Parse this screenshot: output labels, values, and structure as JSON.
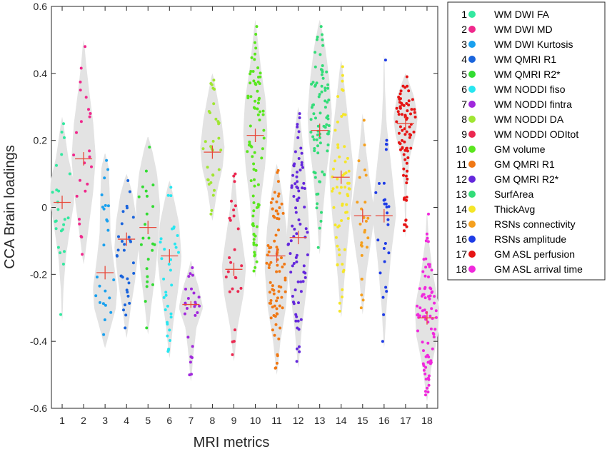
{
  "chart_data": {
    "type": "scatter",
    "subtype": "violin-jitter",
    "xlabel": "MRI metrics",
    "ylabel": "CCA Brain loadings",
    "ylim": [
      -0.6,
      0.6
    ],
    "yticks": [
      -0.6,
      -0.4,
      -0.2,
      0,
      0.2,
      0.4,
      0.6
    ],
    "yticklabels": [
      "-0.6",
      "-0.4",
      "-0.2",
      "0",
      "0.2",
      "0.4",
      "0.6"
    ],
    "xticks": [
      1,
      2,
      3,
      4,
      5,
      6,
      7,
      8,
      9,
      10,
      11,
      12,
      13,
      14,
      15,
      16,
      17,
      18
    ],
    "xticklabels": [
      "1",
      "2",
      "3",
      "4",
      "5",
      "6",
      "7",
      "8",
      "9",
      "10",
      "11",
      "12",
      "13",
      "14",
      "15",
      "16",
      "17",
      "18"
    ],
    "grid": false,
    "legend_position": "top-right outside",
    "median_marker_color": "#e8493b",
    "violin_color": "#e3e3e3",
    "series": [
      {
        "index": "1",
        "name": "WM DWI FA",
        "color": "#33e8a0",
        "median": 0.015,
        "ci": 0.02,
        "min": -0.32,
        "max": 0.25,
        "n": 22,
        "shape": [
          [
            -0.34,
            0.02
          ],
          [
            -0.25,
            0.1
          ],
          [
            -0.15,
            0.3
          ],
          [
            -0.05,
            0.7
          ],
          [
            0.02,
            1.0
          ],
          [
            0.08,
            0.95
          ],
          [
            0.15,
            0.5
          ],
          [
            0.22,
            0.22
          ],
          [
            0.27,
            0.04
          ]
        ]
      },
      {
        "index": "2",
        "name": "WM DWI MD",
        "color": "#f0288c",
        "median": 0.145,
        "ci": 0.02,
        "min": -0.14,
        "max": 0.48,
        "n": 22,
        "shape": [
          [
            -0.17,
            0.02
          ],
          [
            -0.05,
            0.45
          ],
          [
            0.05,
            0.8
          ],
          [
            0.15,
            1.0
          ],
          [
            0.25,
            0.8
          ],
          [
            0.35,
            0.45
          ],
          [
            0.43,
            0.2
          ],
          [
            0.5,
            0.03
          ]
        ]
      },
      {
        "index": "3",
        "name": "WM DWI Kurtosis",
        "color": "#1aa0ee",
        "median": -0.195,
        "ci": 0.02,
        "min": -0.38,
        "max": 0.14,
        "n": 22,
        "shape": [
          [
            -0.42,
            0.02
          ],
          [
            -0.36,
            0.45
          ],
          [
            -0.3,
            0.9
          ],
          [
            -0.24,
            1.0
          ],
          [
            -0.16,
            0.7
          ],
          [
            -0.08,
            0.45
          ],
          [
            0.02,
            0.4
          ],
          [
            0.12,
            0.3
          ],
          [
            0.16,
            0.03
          ]
        ]
      },
      {
        "index": "4",
        "name": "WM QMRI R1",
        "color": "#1a64dc",
        "median": -0.095,
        "ci": 0.02,
        "min": -0.36,
        "max": 0.08,
        "n": 30,
        "shape": [
          [
            -0.39,
            0.02
          ],
          [
            -0.3,
            0.35
          ],
          [
            -0.22,
            0.7
          ],
          [
            -0.12,
            1.0
          ],
          [
            -0.04,
            0.85
          ],
          [
            0.04,
            0.5
          ],
          [
            0.1,
            0.03
          ]
        ]
      },
      {
        "index": "5",
        "name": "WM QMRI R2*",
        "color": "#32dc32",
        "median": -0.06,
        "ci": 0.02,
        "min": -0.36,
        "max": 0.18,
        "n": 22,
        "shape": [
          [
            -0.38,
            0.02
          ],
          [
            -0.3,
            0.25
          ],
          [
            -0.2,
            0.6
          ],
          [
            -0.1,
            0.85
          ],
          [
            0.0,
            1.0
          ],
          [
            0.1,
            0.75
          ],
          [
            0.17,
            0.35
          ],
          [
            0.21,
            0.03
          ]
        ]
      },
      {
        "index": "6",
        "name": "WM NODDI fiso",
        "color": "#28e6f0",
        "median": -0.145,
        "ci": 0.02,
        "min": -0.43,
        "max": 0.06,
        "n": 32,
        "shape": [
          [
            -0.45,
            0.02
          ],
          [
            -0.35,
            0.3
          ],
          [
            -0.25,
            0.7
          ],
          [
            -0.15,
            1.0
          ],
          [
            -0.05,
            0.8
          ],
          [
            0.02,
            0.4
          ],
          [
            0.08,
            0.03
          ]
        ]
      },
      {
        "index": "7",
        "name": "WM NODDI fintra",
        "color": "#a028dc",
        "median": -0.29,
        "ci": 0.01,
        "min": -0.5,
        "max": -0.18,
        "n": 24,
        "shape": [
          [
            -0.52,
            0.02
          ],
          [
            -0.44,
            0.2
          ],
          [
            -0.36,
            0.45
          ],
          [
            -0.3,
            1.0
          ],
          [
            -0.24,
            0.65
          ],
          [
            -0.18,
            0.15
          ],
          [
            -0.16,
            0.02
          ]
        ]
      },
      {
        "index": "8",
        "name": "WM NODDI DA",
        "color": "#a0e632",
        "median": 0.165,
        "ci": 0.02,
        "min": -0.02,
        "max": 0.38,
        "n": 30,
        "shape": [
          [
            -0.04,
            0.02
          ],
          [
            0.05,
            0.4
          ],
          [
            0.12,
            0.85
          ],
          [
            0.18,
            1.0
          ],
          [
            0.26,
            0.75
          ],
          [
            0.34,
            0.35
          ],
          [
            0.4,
            0.03
          ]
        ]
      },
      {
        "index": "9",
        "name": "WM NODDI ODItot",
        "color": "#eb2850",
        "median": -0.185,
        "ci": 0.02,
        "min": -0.44,
        "max": 0.1,
        "n": 24,
        "shape": [
          [
            -0.46,
            0.02
          ],
          [
            -0.36,
            0.3
          ],
          [
            -0.26,
            0.8
          ],
          [
            -0.18,
            1.0
          ],
          [
            -0.1,
            0.7
          ],
          [
            0.0,
            0.3
          ],
          [
            0.11,
            0.03
          ]
        ]
      },
      {
        "index": "10",
        "name": "GM volume",
        "color": "#5ae61e",
        "median": 0.215,
        "ci": 0.02,
        "min": -0.19,
        "max": 0.54,
        "n": 80,
        "shape": [
          [
            -0.21,
            0.02
          ],
          [
            -0.1,
            0.2
          ],
          [
            0.02,
            0.45
          ],
          [
            0.12,
            0.8
          ],
          [
            0.22,
            1.0
          ],
          [
            0.32,
            0.85
          ],
          [
            0.42,
            0.45
          ],
          [
            0.5,
            0.2
          ],
          [
            0.56,
            0.02
          ]
        ]
      },
      {
        "index": "11",
        "name": "GM QMRI R1",
        "color": "#f07814",
        "median": -0.145,
        "ci": 0.02,
        "min": -0.48,
        "max": 0.11,
        "n": 80,
        "shape": [
          [
            -0.5,
            0.02
          ],
          [
            -0.4,
            0.3
          ],
          [
            -0.3,
            0.75
          ],
          [
            -0.18,
            1.0
          ],
          [
            -0.06,
            0.8
          ],
          [
            0.04,
            0.45
          ],
          [
            0.13,
            0.03
          ]
        ]
      },
      {
        "index": "12",
        "name": "GM QMRI R2*",
        "color": "#6428dc",
        "median": -0.09,
        "ci": 0.02,
        "min": -0.46,
        "max": 0.28,
        "n": 80,
        "shape": [
          [
            -0.48,
            0.02
          ],
          [
            -0.36,
            0.3
          ],
          [
            -0.24,
            0.7
          ],
          [
            -0.12,
            1.0
          ],
          [
            0.0,
            0.8
          ],
          [
            0.12,
            0.55
          ],
          [
            0.22,
            0.3
          ],
          [
            0.3,
            0.03
          ]
        ]
      },
      {
        "index": "13",
        "name": "SurfArea",
        "color": "#32dc78",
        "median": 0.23,
        "ci": 0.02,
        "min": -0.12,
        "max": 0.54,
        "n": 80,
        "shape": [
          [
            -0.14,
            0.02
          ],
          [
            -0.02,
            0.25
          ],
          [
            0.1,
            0.55
          ],
          [
            0.2,
            0.9
          ],
          [
            0.28,
            1.0
          ],
          [
            0.38,
            0.8
          ],
          [
            0.48,
            0.45
          ],
          [
            0.56,
            0.03
          ]
        ]
      },
      {
        "index": "14",
        "name": "ThickAvg",
        "color": "#f5e628",
        "median": 0.09,
        "ci": 0.02,
        "min": -0.31,
        "max": 0.42,
        "n": 60,
        "shape": [
          [
            -0.33,
            0.02
          ],
          [
            -0.2,
            0.3
          ],
          [
            -0.08,
            0.6
          ],
          [
            0.04,
            0.9
          ],
          [
            0.12,
            1.0
          ],
          [
            0.22,
            0.7
          ],
          [
            0.32,
            0.4
          ],
          [
            0.44,
            0.03
          ]
        ]
      },
      {
        "index": "15",
        "name": "RSNs connectivity",
        "color": "#f5a01e",
        "median": -0.025,
        "ci": 0.02,
        "min": -0.3,
        "max": 0.26,
        "n": 24,
        "shape": [
          [
            -0.32,
            0.02
          ],
          [
            -0.2,
            0.3
          ],
          [
            -0.1,
            0.7
          ],
          [
            -0.02,
            1.0
          ],
          [
            0.08,
            0.6
          ],
          [
            0.18,
            0.25
          ],
          [
            0.28,
            0.02
          ]
        ]
      },
      {
        "index": "16",
        "name": "RSNs amplitude",
        "color": "#1e3ce6",
        "median": -0.025,
        "ci": 0.02,
        "min": -0.4,
        "max": 0.44,
        "n": 26,
        "shape": [
          [
            -0.42,
            0.02
          ],
          [
            -0.3,
            0.2
          ],
          [
            -0.15,
            0.55
          ],
          [
            -0.02,
            1.0
          ],
          [
            0.12,
            0.6
          ],
          [
            0.25,
            0.2
          ],
          [
            0.35,
            0.08
          ],
          [
            0.46,
            0.02
          ]
        ]
      },
      {
        "index": "17",
        "name": "GM ASL perfusion",
        "color": "#e61414",
        "median": 0.25,
        "ci": 0.02,
        "min": -0.07,
        "max": 0.39,
        "n": 80,
        "shape": [
          [
            -0.09,
            0.02
          ],
          [
            0.05,
            0.1
          ],
          [
            0.15,
            0.35
          ],
          [
            0.22,
            0.85
          ],
          [
            0.27,
            1.0
          ],
          [
            0.33,
            0.7
          ],
          [
            0.4,
            0.03
          ]
        ]
      },
      {
        "index": "18",
        "name": "GM ASL arrival time",
        "color": "#f028dc",
        "median": -0.33,
        "ci": 0.02,
        "min": -0.56,
        "max": -0.02,
        "n": 80,
        "shape": [
          [
            -0.58,
            0.02
          ],
          [
            -0.48,
            0.35
          ],
          [
            -0.38,
            0.9
          ],
          [
            -0.3,
            1.0
          ],
          [
            -0.2,
            0.5
          ],
          [
            -0.1,
            0.15
          ],
          [
            -0.02,
            0.02
          ]
        ]
      }
    ]
  }
}
